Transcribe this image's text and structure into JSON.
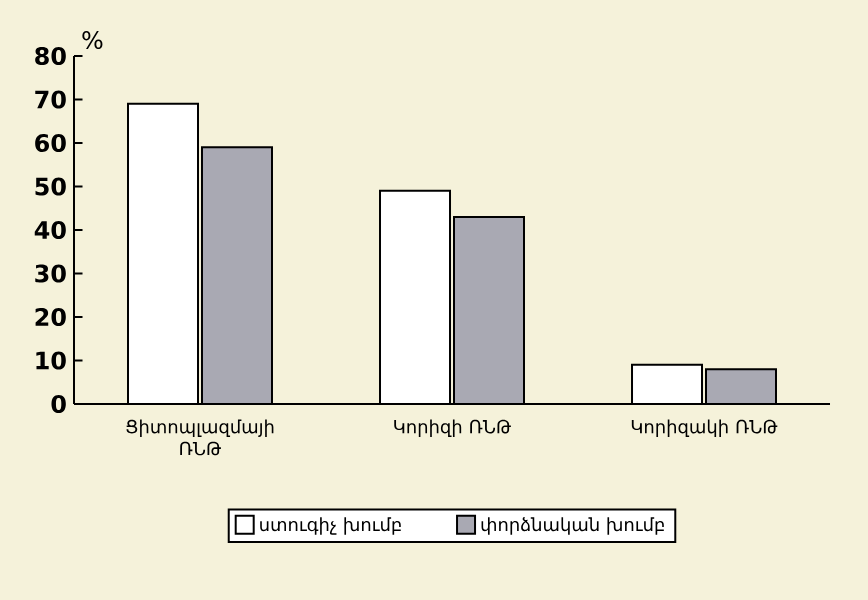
{
  "chart_data": {
    "type": "bar",
    "ylabel": "%",
    "categories": [
      "Ցիտոպլազմայի ՌՆԹ",
      "Կորիզի ՌՆԹ",
      "Կորիզակի ՌՆԹ"
    ],
    "series": [
      {
        "name": "ստուգիչ խումբ",
        "color": "#ffffff",
        "values": [
          69,
          49,
          9
        ]
      },
      {
        "name": "փորձնական խումբ",
        "color": "#a9a9b3",
        "values": [
          59,
          43,
          8
        ]
      }
    ],
    "ylim": [
      0,
      80
    ],
    "yticks": [
      0,
      10,
      20,
      30,
      40,
      50,
      60,
      70,
      80
    ],
    "grid": false,
    "legend": "bottom"
  }
}
